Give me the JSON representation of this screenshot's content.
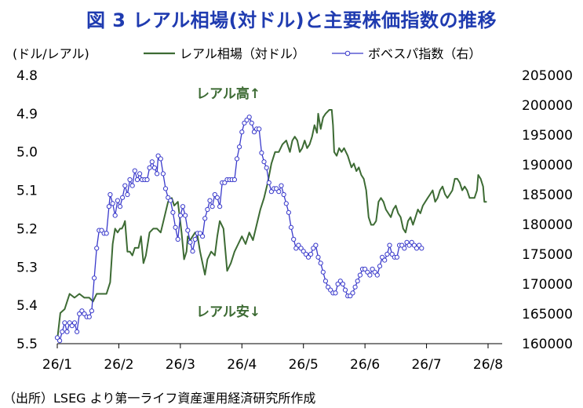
{
  "title": "図 3 レアル相場(対ドル)と主要株価指数の推移",
  "source": "（出所）LSEG より第一ライフ資産運用経済研究所作成",
  "chart_data": {
    "type": "line",
    "left_axis": {
      "unit_label": "(ドル/レアル)",
      "inverted": true,
      "ylim": [
        4.8,
        5.5
      ],
      "ticks": [
        "4.8",
        "4.9",
        "5.0",
        "5.1",
        "5.2",
        "5.3",
        "5.4",
        "5.5"
      ]
    },
    "right_axis": {
      "ylim": [
        160000,
        205000
      ],
      "ticks": [
        "205000",
        "200000",
        "195000",
        "190000",
        "185000",
        "180000",
        "175000",
        "170000",
        "165000",
        "160000"
      ]
    },
    "x_ticks": [
      "26/1",
      "26/2",
      "26/3",
      "26/4",
      "26/5",
      "26/6",
      "26/7",
      "26/8"
    ],
    "legend_position": "top",
    "annotations": [
      "レアル高↑",
      "レアル安↓"
    ],
    "series": [
      {
        "name": "レアル相場（対ドル）",
        "axis": "left",
        "color": "#3d6b34",
        "marker": "none",
        "points": [
          [
            0.0,
            5.49
          ],
          [
            0.05,
            5.42
          ],
          [
            0.12,
            5.41
          ],
          [
            0.2,
            5.37
          ],
          [
            0.28,
            5.38
          ],
          [
            0.36,
            5.37
          ],
          [
            0.44,
            5.38
          ],
          [
            0.52,
            5.38
          ],
          [
            0.58,
            5.39
          ],
          [
            0.64,
            5.37
          ],
          [
            0.7,
            5.37
          ],
          [
            0.8,
            5.37
          ],
          [
            0.86,
            5.34
          ],
          [
            0.9,
            5.24
          ],
          [
            0.94,
            5.2
          ],
          [
            0.98,
            5.21
          ],
          [
            1.02,
            5.2
          ],
          [
            1.05,
            5.2
          ],
          [
            1.08,
            5.19
          ],
          [
            1.1,
            5.18
          ],
          [
            1.14,
            5.26
          ],
          [
            1.18,
            5.26
          ],
          [
            1.22,
            5.27
          ],
          [
            1.26,
            5.25
          ],
          [
            1.32,
            5.25
          ],
          [
            1.36,
            5.22
          ],
          [
            1.4,
            5.29
          ],
          [
            1.44,
            5.27
          ],
          [
            1.5,
            5.21
          ],
          [
            1.56,
            5.2
          ],
          [
            1.62,
            5.2
          ],
          [
            1.68,
            5.21
          ],
          [
            1.74,
            5.17
          ],
          [
            1.8,
            5.13
          ],
          [
            1.86,
            5.12
          ],
          [
            1.9,
            5.14
          ],
          [
            1.96,
            5.13
          ],
          [
            2.02,
            5.21
          ],
          [
            2.06,
            5.28
          ],
          [
            2.1,
            5.26
          ],
          [
            2.12,
            5.22
          ],
          [
            2.16,
            5.23
          ],
          [
            2.2,
            5.22
          ],
          [
            2.24,
            5.21
          ],
          [
            2.28,
            5.22
          ],
          [
            2.32,
            5.26
          ],
          [
            2.36,
            5.29
          ],
          [
            2.4,
            5.32
          ],
          [
            2.44,
            5.28
          ],
          [
            2.5,
            5.26
          ],
          [
            2.56,
            5.27
          ],
          [
            2.6,
            5.22
          ],
          [
            2.64,
            5.18
          ],
          [
            2.7,
            5.2
          ],
          [
            2.76,
            5.31
          ],
          [
            2.82,
            5.29
          ],
          [
            2.88,
            5.26
          ],
          [
            2.94,
            5.24
          ],
          [
            3.0,
            5.22
          ],
          [
            3.06,
            5.24
          ],
          [
            3.12,
            5.21
          ],
          [
            3.18,
            5.23
          ],
          [
            3.24,
            5.19
          ],
          [
            3.3,
            5.15
          ],
          [
            3.36,
            5.12
          ],
          [
            3.42,
            5.08
          ],
          [
            3.48,
            5.03
          ],
          [
            3.54,
            5.0
          ],
          [
            3.6,
            5.0
          ],
          [
            3.66,
            4.98
          ],
          [
            3.72,
            4.97
          ],
          [
            3.78,
            5.0
          ],
          [
            3.82,
            4.97
          ],
          [
            3.86,
            4.96
          ],
          [
            3.9,
            4.97
          ],
          [
            3.94,
            5.0
          ],
          [
            3.98,
            4.99
          ],
          [
            4.02,
            4.97
          ],
          [
            4.06,
            4.99
          ],
          [
            4.1,
            4.98
          ],
          [
            4.14,
            4.96
          ],
          [
            4.18,
            4.93
          ],
          [
            4.22,
            4.95
          ],
          [
            4.24,
            4.9
          ],
          [
            4.28,
            4.94
          ],
          [
            4.32,
            4.91
          ],
          [
            4.36,
            4.9
          ],
          [
            4.42,
            4.89
          ],
          [
            4.46,
            4.89
          ],
          [
            4.48,
            4.93
          ],
          [
            4.5,
            5.0
          ],
          [
            4.54,
            5.01
          ],
          [
            4.58,
            4.99
          ],
          [
            4.62,
            5.0
          ],
          [
            4.66,
            4.99
          ],
          [
            4.72,
            5.01
          ],
          [
            4.78,
            5.04
          ],
          [
            4.82,
            5.03
          ],
          [
            4.86,
            5.05
          ],
          [
            4.9,
            5.04
          ],
          [
            4.94,
            5.06
          ],
          [
            4.98,
            5.07
          ],
          [
            5.02,
            5.1
          ],
          [
            5.06,
            5.17
          ],
          [
            5.1,
            5.19
          ],
          [
            5.14,
            5.19
          ],
          [
            5.18,
            5.18
          ],
          [
            5.22,
            5.13
          ],
          [
            5.26,
            5.12
          ],
          [
            5.3,
            5.13
          ],
          [
            5.34,
            5.15
          ],
          [
            5.38,
            5.16
          ],
          [
            5.42,
            5.17
          ],
          [
            5.46,
            5.15
          ],
          [
            5.5,
            5.14
          ],
          [
            5.54,
            5.16
          ],
          [
            5.58,
            5.17
          ],
          [
            5.62,
            5.2
          ],
          [
            5.66,
            5.21
          ],
          [
            5.7,
            5.18
          ],
          [
            5.74,
            5.17
          ],
          [
            5.78,
            5.19
          ],
          [
            5.82,
            5.17
          ],
          [
            5.86,
            5.15
          ],
          [
            5.9,
            5.16
          ],
          [
            5.94,
            5.14
          ],
          [
            5.98,
            5.13
          ],
          [
            6.02,
            5.12
          ],
          [
            6.06,
            5.11
          ],
          [
            6.1,
            5.1
          ],
          [
            6.14,
            5.13
          ],
          [
            6.18,
            5.12
          ],
          [
            6.22,
            5.1
          ],
          [
            6.26,
            5.09
          ],
          [
            6.3,
            5.11
          ],
          [
            6.34,
            5.12
          ],
          [
            6.38,
            5.11
          ],
          [
            6.42,
            5.1
          ],
          [
            6.46,
            5.07
          ],
          [
            6.5,
            5.07
          ],
          [
            6.54,
            5.08
          ],
          [
            6.58,
            5.1
          ],
          [
            6.62,
            5.09
          ],
          [
            6.66,
            5.1
          ],
          [
            6.7,
            5.12
          ],
          [
            6.74,
            5.12
          ],
          [
            6.78,
            5.12
          ],
          [
            6.82,
            5.1
          ],
          [
            6.84,
            5.06
          ],
          [
            6.88,
            5.07
          ],
          [
            6.92,
            5.09
          ],
          [
            6.94,
            5.13
          ],
          [
            6.98,
            5.13
          ]
        ]
      },
      {
        "name": "ボベスパ指数（右）",
        "axis": "right",
        "color": "#3a3acb",
        "marker": "circle",
        "points": [
          [
            0.0,
            161000
          ],
          [
            0.04,
            160500
          ],
          [
            0.08,
            162000
          ],
          [
            0.12,
            163500
          ],
          [
            0.16,
            162000
          ],
          [
            0.2,
            163500
          ],
          [
            0.24,
            163000
          ],
          [
            0.28,
            163500
          ],
          [
            0.32,
            162000
          ],
          [
            0.36,
            165000
          ],
          [
            0.4,
            165500
          ],
          [
            0.44,
            165000
          ],
          [
            0.48,
            164500
          ],
          [
            0.52,
            164500
          ],
          [
            0.56,
            165500
          ],
          [
            0.6,
            171000
          ],
          [
            0.64,
            176000
          ],
          [
            0.68,
            179000
          ],
          [
            0.72,
            179000
          ],
          [
            0.76,
            178500
          ],
          [
            0.8,
            178500
          ],
          [
            0.84,
            183000
          ],
          [
            0.86,
            185000
          ],
          [
            0.9,
            183500
          ],
          [
            0.94,
            181500
          ],
          [
            0.98,
            184000
          ],
          [
            1.02,
            183000
          ],
          [
            1.06,
            184500
          ],
          [
            1.1,
            186500
          ],
          [
            1.14,
            185000
          ],
          [
            1.18,
            187500
          ],
          [
            1.22,
            186500
          ],
          [
            1.26,
            189000
          ],
          [
            1.3,
            187500
          ],
          [
            1.34,
            188500
          ],
          [
            1.38,
            187500
          ],
          [
            1.42,
            187500
          ],
          [
            1.46,
            187500
          ],
          [
            1.5,
            189500
          ],
          [
            1.54,
            190500
          ],
          [
            1.58,
            189500
          ],
          [
            1.62,
            188500
          ],
          [
            1.64,
            191500
          ],
          [
            1.68,
            191000
          ],
          [
            1.72,
            188500
          ],
          [
            1.76,
            186000
          ],
          [
            1.8,
            184500
          ],
          [
            1.84,
            184000
          ],
          [
            1.88,
            182000
          ],
          [
            1.92,
            179500
          ],
          [
            1.96,
            177500
          ],
          [
            2.0,
            181500
          ],
          [
            2.04,
            183000
          ],
          [
            2.08,
            181500
          ],
          [
            2.12,
            179000
          ],
          [
            2.16,
            177000
          ],
          [
            2.2,
            175500
          ],
          [
            2.24,
            177500
          ],
          [
            2.28,
            178500
          ],
          [
            2.32,
            178500
          ],
          [
            2.36,
            178000
          ],
          [
            2.4,
            181000
          ],
          [
            2.44,
            182500
          ],
          [
            2.48,
            184000
          ],
          [
            2.52,
            183000
          ],
          [
            2.56,
            185000
          ],
          [
            2.6,
            184500
          ],
          [
            2.64,
            183000
          ],
          [
            2.68,
            187000
          ],
          [
            2.72,
            187000
          ],
          [
            2.76,
            187500
          ],
          [
            2.8,
            187500
          ],
          [
            2.84,
            187500
          ],
          [
            2.88,
            187500
          ],
          [
            2.92,
            191000
          ],
          [
            2.96,
            193000
          ],
          [
            3.0,
            195500
          ],
          [
            3.04,
            197000
          ],
          [
            3.08,
            197500
          ],
          [
            3.12,
            198000
          ],
          [
            3.16,
            197000
          ],
          [
            3.2,
            195500
          ],
          [
            3.24,
            196000
          ],
          [
            3.28,
            196000
          ],
          [
            3.32,
            192000
          ],
          [
            3.36,
            190500
          ],
          [
            3.4,
            189500
          ],
          [
            3.44,
            187000
          ],
          [
            3.48,
            185500
          ],
          [
            3.52,
            186000
          ],
          [
            3.56,
            186000
          ],
          [
            3.6,
            185500
          ],
          [
            3.64,
            186500
          ],
          [
            3.68,
            185000
          ],
          [
            3.72,
            183500
          ],
          [
            3.76,
            182000
          ],
          [
            3.8,
            179500
          ],
          [
            3.84,
            177500
          ],
          [
            3.88,
            176000
          ],
          [
            3.92,
            176500
          ],
          [
            3.96,
            176000
          ],
          [
            4.0,
            175500
          ],
          [
            4.04,
            175000
          ],
          [
            4.08,
            174500
          ],
          [
            4.12,
            175000
          ],
          [
            4.16,
            176000
          ],
          [
            4.2,
            176500
          ],
          [
            4.24,
            174500
          ],
          [
            4.28,
            173500
          ],
          [
            4.32,
            172000
          ],
          [
            4.36,
            170500
          ],
          [
            4.4,
            169500
          ],
          [
            4.44,
            169000
          ],
          [
            4.48,
            168500
          ],
          [
            4.52,
            168500
          ],
          [
            4.56,
            170000
          ],
          [
            4.6,
            170500
          ],
          [
            4.64,
            170000
          ],
          [
            4.68,
            169000
          ],
          [
            4.72,
            168000
          ],
          [
            4.76,
            168000
          ],
          [
            4.8,
            168500
          ],
          [
            4.84,
            169500
          ],
          [
            4.88,
            170500
          ],
          [
            4.92,
            171500
          ],
          [
            4.96,
            172500
          ],
          [
            5.0,
            172500
          ],
          [
            5.04,
            172000
          ],
          [
            5.08,
            171500
          ],
          [
            5.12,
            172500
          ],
          [
            5.16,
            172000
          ],
          [
            5.2,
            171500
          ],
          [
            5.24,
            173000
          ],
          [
            5.28,
            174500
          ],
          [
            5.32,
            174000
          ],
          [
            5.36,
            175000
          ],
          [
            5.4,
            176500
          ],
          [
            5.44,
            175000
          ],
          [
            5.48,
            174500
          ],
          [
            5.52,
            174500
          ],
          [
            5.56,
            176500
          ],
          [
            5.6,
            176500
          ],
          [
            5.64,
            176000
          ],
          [
            5.68,
            177000
          ],
          [
            5.72,
            176500
          ],
          [
            5.76,
            177000
          ],
          [
            5.8,
            176500
          ],
          [
            5.84,
            176000
          ],
          [
            5.88,
            176500
          ],
          [
            5.92,
            176000
          ]
        ]
      }
    ]
  }
}
